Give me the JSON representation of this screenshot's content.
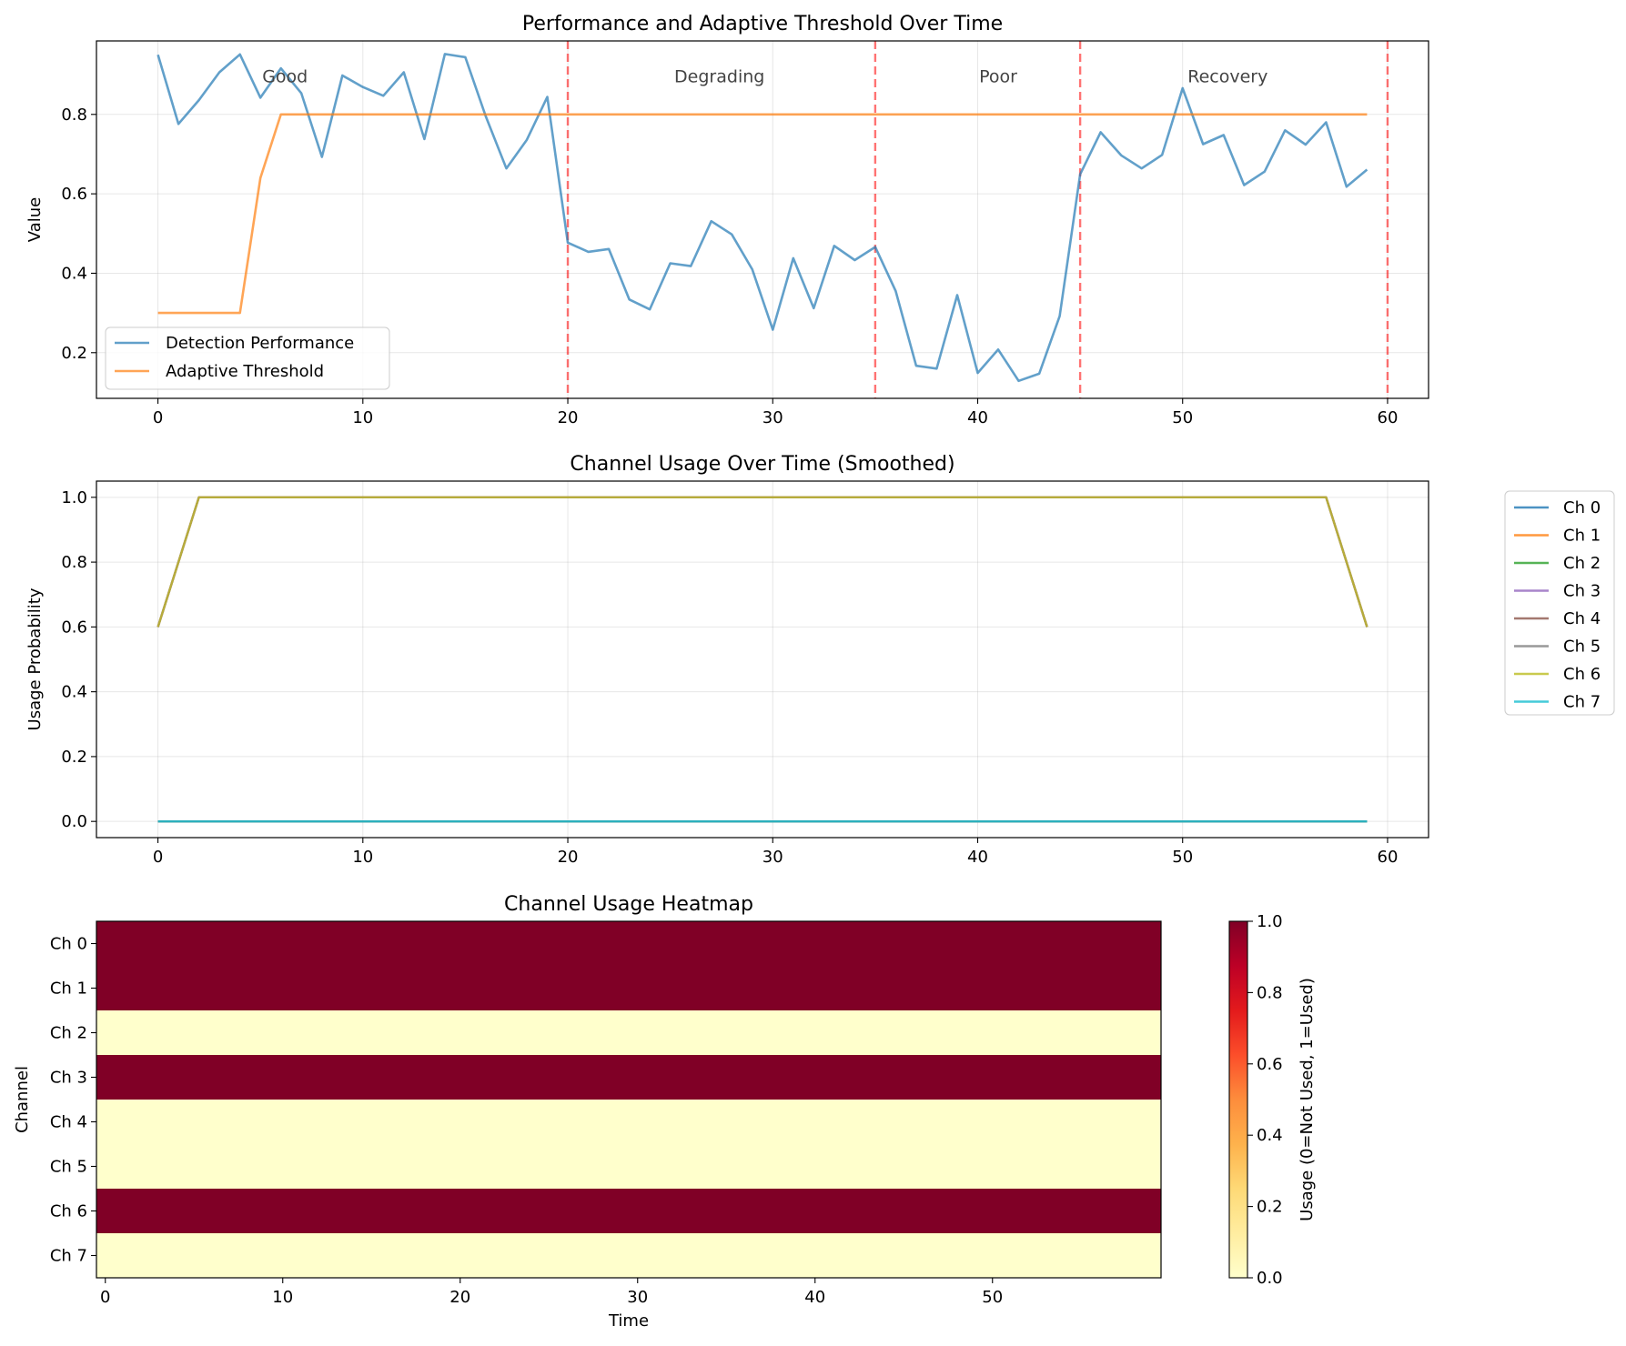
{
  "chart_data": [
    {
      "type": "line",
      "title": "Performance and Adaptive Threshold Over Time",
      "xlabel": "",
      "ylabel": "Value",
      "xlim": [
        -3,
        62
      ],
      "ylim": [
        0.085,
        0.985
      ],
      "xticks": [
        0,
        10,
        20,
        30,
        40,
        50,
        60
      ],
      "yticks": [
        0.2,
        0.4,
        0.6,
        0.8
      ],
      "grid": true,
      "legend_position": "lower-left",
      "x": [
        0,
        1,
        2,
        3,
        4,
        5,
        6,
        7,
        8,
        9,
        10,
        11,
        12,
        13,
        14,
        15,
        16,
        17,
        18,
        19,
        20,
        21,
        22,
        23,
        24,
        25,
        26,
        27,
        28,
        29,
        30,
        31,
        32,
        33,
        34,
        35,
        36,
        37,
        38,
        39,
        40,
        41,
        42,
        43,
        44,
        45,
        46,
        47,
        48,
        49,
        50,
        51,
        52,
        53,
        54,
        55,
        56,
        57,
        58,
        59
      ],
      "series": [
        {
          "name": "Detection Performance",
          "color": "#1f77b4",
          "values": [
            0.95,
            0.776,
            0.836,
            0.906,
            0.951,
            0.842,
            0.916,
            0.853,
            0.693,
            0.898,
            0.869,
            0.847,
            0.906,
            0.738,
            0.952,
            0.944,
            0.795,
            0.664,
            0.736,
            0.844,
            0.477,
            0.454,
            0.461,
            0.334,
            0.309,
            0.425,
            0.418,
            0.531,
            0.498,
            0.41,
            0.258,
            0.438,
            0.312,
            0.469,
            0.433,
            0.466,
            0.355,
            0.167,
            0.16,
            0.345,
            0.149,
            0.208,
            0.129,
            0.147,
            0.292,
            0.649,
            0.755,
            0.697,
            0.664,
            0.698,
            0.866,
            0.725,
            0.748,
            0.622,
            0.656,
            0.76,
            0.724,
            0.78,
            0.618,
            0.661
          ]
        },
        {
          "name": "Adaptive Threshold",
          "color": "#ff7f0e",
          "values": [
            0.3,
            0.3,
            0.3,
            0.3,
            0.3,
            0.64,
            0.8,
            0.8,
            0.8,
            0.8,
            0.8,
            0.8,
            0.8,
            0.8,
            0.8,
            0.8,
            0.8,
            0.8,
            0.8,
            0.8,
            0.8,
            0.8,
            0.8,
            0.8,
            0.8,
            0.8,
            0.8,
            0.8,
            0.8,
            0.8,
            0.8,
            0.8,
            0.8,
            0.8,
            0.8,
            0.8,
            0.8,
            0.8,
            0.8,
            0.8,
            0.8,
            0.8,
            0.8,
            0.8,
            0.8,
            0.8,
            0.8,
            0.8,
            0.8,
            0.8,
            0.8,
            0.8,
            0.8,
            0.8,
            0.8,
            0.8,
            0.8,
            0.8,
            0.8,
            0.8
          ]
        }
      ],
      "vlines": [
        20,
        35,
        45,
        60
      ],
      "vline_color": "#ff0000",
      "annotations": [
        {
          "text": "Good",
          "x": 6.2,
          "y": 0.895
        },
        {
          "text": "Degrading",
          "x": 27.4,
          "y": 0.895
        },
        {
          "text": "Poor",
          "x": 41.0,
          "y": 0.895
        },
        {
          "text": "Recovery",
          "x": 52.2,
          "y": 0.895
        }
      ]
    },
    {
      "type": "line",
      "title": "Channel Usage Over Time (Smoothed)",
      "xlabel": "",
      "ylabel": "Usage Probability",
      "xlim": [
        -3,
        62
      ],
      "ylim": [
        -0.05,
        1.05
      ],
      "xticks": [
        0,
        10,
        20,
        30,
        40,
        50,
        60
      ],
      "yticks": [
        0.0,
        0.2,
        0.4,
        0.6,
        0.8,
        1.0
      ],
      "grid": true,
      "legend_position": "outside-right",
      "x_start": 0,
      "x_end": 59,
      "series": [
        {
          "name": "Ch 0",
          "color": "#1f77b4",
          "used": true
        },
        {
          "name": "Ch 1",
          "color": "#ff7f0e",
          "used": true
        },
        {
          "name": "Ch 2",
          "color": "#2ca02c",
          "used": false
        },
        {
          "name": "Ch 3",
          "color": "#9467bd",
          "used": true
        },
        {
          "name": "Ch 4",
          "color": "#8c564b",
          "used": false
        },
        {
          "name": "Ch 5",
          "color": "#7f7f7f",
          "used": false
        },
        {
          "name": "Ch 6",
          "color": "#bcbd22",
          "used": true
        },
        {
          "name": "Ch 7",
          "color": "#17becf",
          "used": false
        }
      ],
      "used_profile": [
        [
          0,
          0.6
        ],
        [
          2,
          1.0
        ],
        [
          57,
          1.0
        ],
        [
          59,
          0.6
        ]
      ],
      "unused_value": 0.0
    },
    {
      "type": "heatmap",
      "title": "Channel Usage Heatmap",
      "xlabel": "Time",
      "ylabel": "Channel",
      "x_range": [
        -0.5,
        59.5
      ],
      "xticks": [
        0,
        10,
        20,
        30,
        40,
        50
      ],
      "rows": [
        "Ch 0",
        "Ch 1",
        "Ch 2",
        "Ch 3",
        "Ch 4",
        "Ch 5",
        "Ch 6",
        "Ch 7"
      ],
      "values": [
        1,
        1,
        0,
        1,
        0,
        0,
        1,
        0
      ],
      "colormap": "YlOrRd",
      "colorbar_label": "Usage (0=Not Used, 1=Used)",
      "colorbar_ticks": [
        0.0,
        0.2,
        0.4,
        0.6,
        0.8,
        1.0
      ],
      "color_low": "#ffffcc",
      "color_high": "#800026"
    }
  ]
}
